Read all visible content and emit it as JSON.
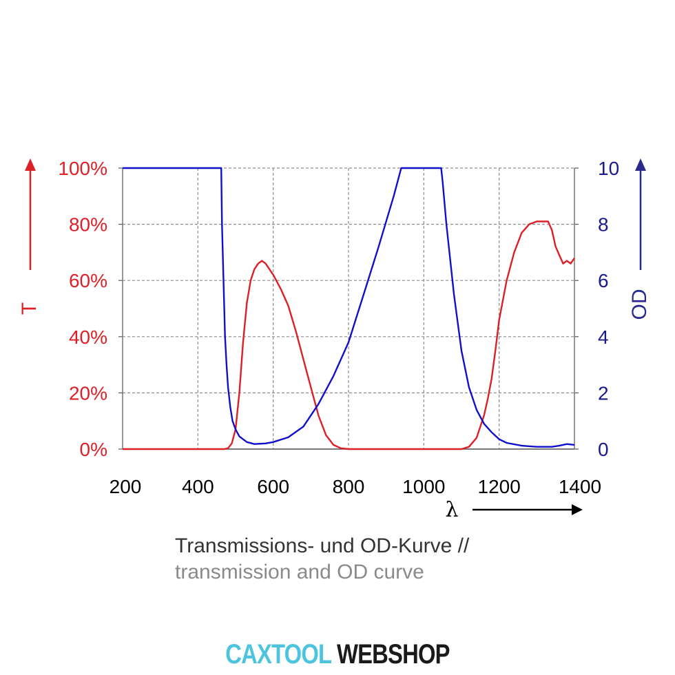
{
  "chart_data": {
    "type": "line",
    "xlabel": "λ",
    "xlim": [
      200,
      1400
    ],
    "x_ticks": [
      "200",
      "400",
      "600",
      "800",
      "1000",
      "1200",
      "1400"
    ],
    "y_left": {
      "label": "T",
      "lim": [
        0,
        100
      ],
      "ticks": [
        "0%",
        "20%",
        "40%",
        "60%",
        "80%",
        "100%"
      ],
      "color": "#dd1f26"
    },
    "y_right": {
      "label": "OD",
      "lim": [
        0,
        10
      ],
      "ticks": [
        "0",
        "2",
        "4",
        "6",
        "8",
        "10"
      ],
      "color": "#1a1a8c"
    },
    "grid": true,
    "series": [
      {
        "axis": "left",
        "color": "#dd1f26",
        "x": [
          200,
          470,
          480,
          490,
          500,
          510,
          520,
          530,
          540,
          550,
          560,
          570,
          580,
          590,
          600,
          620,
          640,
          660,
          680,
          700,
          720,
          740,
          760,
          780,
          800,
          1000,
          1100,
          1120,
          1140,
          1160,
          1170,
          1180,
          1190,
          1200,
          1220,
          1240,
          1260,
          1280,
          1300,
          1330,
          1340,
          1350,
          1360,
          1370,
          1380,
          1390,
          1400
        ],
        "y": [
          0,
          0,
          0.3,
          2,
          7,
          20,
          38,
          52,
          60,
          64,
          66,
          67,
          66,
          64,
          62,
          57,
          51,
          42,
          32,
          22,
          12,
          5,
          1.5,
          0.3,
          0,
          0,
          0,
          0.8,
          4,
          12,
          18,
          25,
          35,
          46,
          60,
          70,
          77,
          80,
          81,
          81,
          78,
          72,
          69,
          66,
          67,
          66,
          68
        ]
      },
      {
        "axis": "right",
        "color": "#1010cc",
        "x": [
          200,
          462,
          464,
          468,
          472,
          476,
          480,
          486,
          492,
          500,
          510,
          520,
          530,
          550,
          580,
          600,
          640,
          680,
          720,
          760,
          800,
          840,
          880,
          920,
          940,
          1046,
          1050,
          1060,
          1080,
          1100,
          1120,
          1140,
          1160,
          1180,
          1200,
          1220,
          1260,
          1300,
          1340,
          1360,
          1380,
          1400
        ],
        "y": [
          10,
          10,
          8,
          6,
          4,
          3,
          2.2,
          1.5,
          1,
          0.7,
          0.45,
          0.35,
          0.25,
          0.18,
          0.2,
          0.25,
          0.42,
          0.8,
          1.6,
          2.6,
          3.8,
          5.5,
          7.2,
          9.0,
          10,
          10,
          9.5,
          8.0,
          5.5,
          3.5,
          2.2,
          1.4,
          0.9,
          0.6,
          0.35,
          0.22,
          0.12,
          0.08,
          0.08,
          0.12,
          0.18,
          0.15
        ]
      }
    ]
  },
  "caption": {
    "line1": "Transmissions- und OD-Kurve //",
    "line2": "transmission and OD curve"
  },
  "logo": {
    "part1": "CAXTOOL",
    "part2": "WEBSHOP",
    "color1": "#4cc4e0",
    "color2": "#1a1a1a"
  }
}
